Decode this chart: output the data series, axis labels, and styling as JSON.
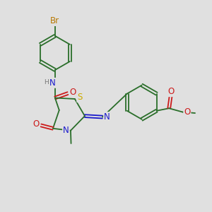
{
  "background_color": "#e0e0e0",
  "bond_color": "#2a6e2a",
  "atom_colors": {
    "Br": "#b87800",
    "N": "#1a1acc",
    "O": "#cc1a1a",
    "S": "#ccaa00",
    "H": "#777777",
    "C": "#2a6e2a"
  },
  "font_size": 7.5,
  "figsize": [
    3.0,
    3.0
  ],
  "dpi": 100,
  "lw": 1.3,
  "xlim": [
    0,
    10
  ],
  "ylim": [
    0,
    10
  ]
}
